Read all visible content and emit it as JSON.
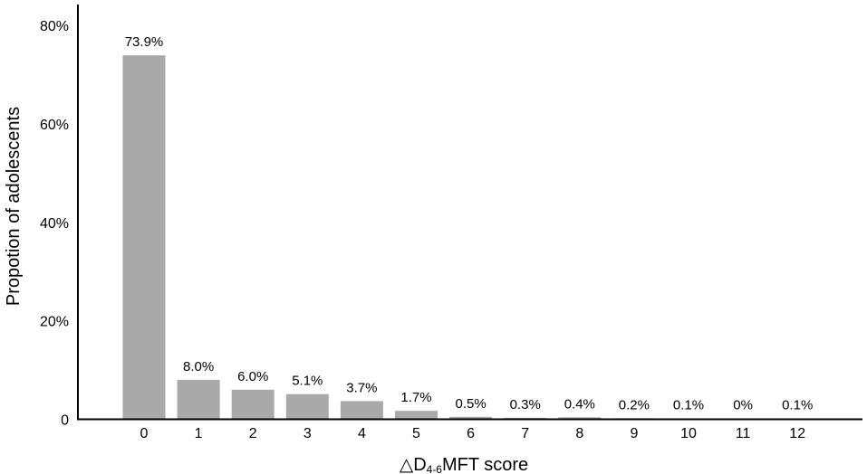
{
  "chart_data": {
    "type": "bar",
    "categories": [
      "0",
      "1",
      "2",
      "3",
      "4",
      "5",
      "6",
      "7",
      "8",
      "9",
      "10",
      "11",
      "12"
    ],
    "values": [
      73.9,
      8.0,
      6.0,
      5.1,
      3.7,
      1.7,
      0.5,
      0.3,
      0.4,
      0.2,
      0.1,
      0,
      0.1
    ],
    "data_labels": [
      "73.9%",
      "8.0%",
      "6.0%",
      "5.1%",
      "3.7%",
      "1.7%",
      "0.5%",
      "0.3%",
      "0.4%",
      "0.2%",
      "0.1%",
      "0%",
      "0.1%"
    ],
    "y_ticks": [
      0,
      20,
      40,
      60,
      80
    ],
    "y_tick_labels": [
      "0",
      "20%",
      "40%",
      "60%",
      "80%"
    ],
    "ylim": [
      0,
      80
    ],
    "ylabel": "Propotion of adolescents",
    "xlabel": {
      "prefix": "△D",
      "subscript": "4-6",
      "suffix": "MFT score"
    },
    "title": "",
    "grid": false,
    "legend": "none",
    "colors": {
      "bar": "#a9a9a9",
      "axis": "#000000",
      "text": "#000000"
    }
  }
}
